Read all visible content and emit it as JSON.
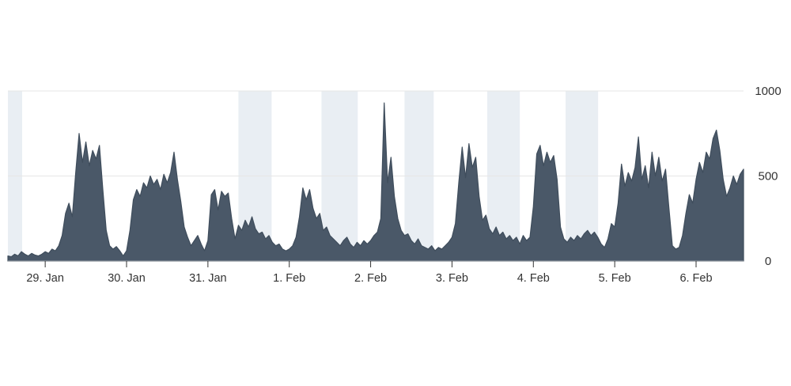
{
  "chart_data": {
    "type": "area",
    "title": "",
    "xlabel": "",
    "ylabel": "",
    "x_unit": "hours-from-chart-start",
    "x_start": 0,
    "x_step": 1,
    "xlim": [
      0,
      217
    ],
    "ylim": [
      0,
      1000
    ],
    "grid": true,
    "legend": "none",
    "y_axis_position": "right",
    "xticks": [
      {
        "x": 11,
        "label": "29. Jan"
      },
      {
        "x": 35,
        "label": "30. Jan"
      },
      {
        "x": 59,
        "label": "31. Jan"
      },
      {
        "x": 83,
        "label": "1. Feb"
      },
      {
        "x": 107,
        "label": "2. Feb"
      },
      {
        "x": 131,
        "label": "3. Feb"
      },
      {
        "x": 155,
        "label": "4. Feb"
      },
      {
        "x": 179,
        "label": "5. Feb"
      },
      {
        "x": 203,
        "label": "6. Feb"
      }
    ],
    "yticks": [
      {
        "y": 0,
        "label": "0"
      },
      {
        "y": 500,
        "label": "500"
      },
      {
        "y": 1000,
        "label": "1000"
      }
    ],
    "plot_bands": [
      {
        "from": 0,
        "to": 4.2
      },
      {
        "from": 68.0,
        "to": 77.8
      },
      {
        "from": 92.5,
        "to": 103.2
      },
      {
        "from": 117.0,
        "to": 125.6
      },
      {
        "from": 141.4,
        "to": 151.0
      },
      {
        "from": 164.5,
        "to": 174.1
      }
    ],
    "values": [
      30,
      25,
      40,
      30,
      55,
      40,
      30,
      45,
      35,
      30,
      40,
      55,
      45,
      70,
      60,
      90,
      150,
      280,
      340,
      260,
      520,
      750,
      580,
      700,
      560,
      650,
      600,
      680,
      420,
      180,
      90,
      70,
      85,
      60,
      30,
      60,
      180,
      360,
      420,
      380,
      460,
      430,
      500,
      450,
      480,
      420,
      510,
      460,
      520,
      640,
      480,
      350,
      200,
      140,
      90,
      120,
      150,
      100,
      60,
      120,
      390,
      420,
      300,
      410,
      380,
      400,
      250,
      130,
      210,
      180,
      240,
      200,
      260,
      190,
      160,
      170,
      130,
      150,
      110,
      90,
      100,
      70,
      60,
      70,
      90,
      140,
      260,
      430,
      360,
      420,
      310,
      250,
      280,
      180,
      200,
      150,
      130,
      110,
      90,
      120,
      140,
      100,
      80,
      110,
      90,
      120,
      100,
      120,
      150,
      170,
      250,
      930,
      460,
      610,
      380,
      250,
      180,
      150,
      160,
      120,
      100,
      130,
      90,
      80,
      70,
      90,
      60,
      80,
      70,
      90,
      110,
      140,
      220,
      460,
      670,
      490,
      690,
      550,
      610,
      380,
      240,
      270,
      190,
      160,
      200,
      150,
      170,
      130,
      150,
      120,
      140,
      100,
      150,
      120,
      140,
      320,
      630,
      680,
      560,
      640,
      580,
      620,
      480,
      200,
      130,
      110,
      140,
      120,
      150,
      130,
      160,
      180,
      150,
      170,
      140,
      100,
      80,
      130,
      220,
      200,
      340,
      570,
      440,
      520,
      470,
      550,
      730,
      480,
      560,
      430,
      640,
      500,
      610,
      470,
      540,
      310,
      90,
      70,
      80,
      150,
      280,
      390,
      340,
      480,
      580,
      520,
      640,
      600,
      720,
      770,
      650,
      480,
      380,
      430,
      500,
      450,
      510,
      540
    ],
    "colors": {
      "area_fill": "#4a5868",
      "area_stroke": "#3f4d5c",
      "plot_band": "#e9eef3",
      "gridline": "#e6e6e6",
      "axis_line": "#9aa0a6",
      "tick_mark": "#333333",
      "label": "#333333",
      "background": "#ffffff"
    }
  }
}
